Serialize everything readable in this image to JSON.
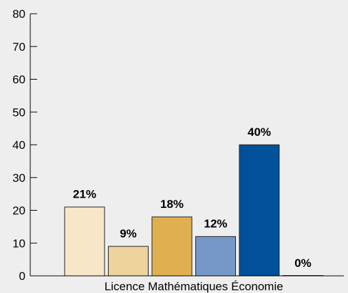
{
  "chart_data": {
    "type": "bar",
    "title": "",
    "xlabel": "",
    "ylabel": "",
    "ylim": [
      0,
      80
    ],
    "yticks": [
      0,
      10,
      20,
      30,
      40,
      50,
      60,
      70,
      80
    ],
    "grid": false,
    "category_label": "Licence Mathématiques Économie",
    "bars": [
      {
        "value": 21,
        "label": "21%",
        "color": "#f7e7c8"
      },
      {
        "value": 9,
        "label": "9%",
        "color": "#eed39e"
      },
      {
        "value": 18,
        "label": "18%",
        "color": "#e0b050"
      },
      {
        "value": 12,
        "label": "12%",
        "color": "#7698c8"
      },
      {
        "value": 40,
        "label": "40%",
        "color": "#00509a"
      },
      {
        "value": 0,
        "label": "0%",
        "color": "#003a78"
      }
    ]
  }
}
